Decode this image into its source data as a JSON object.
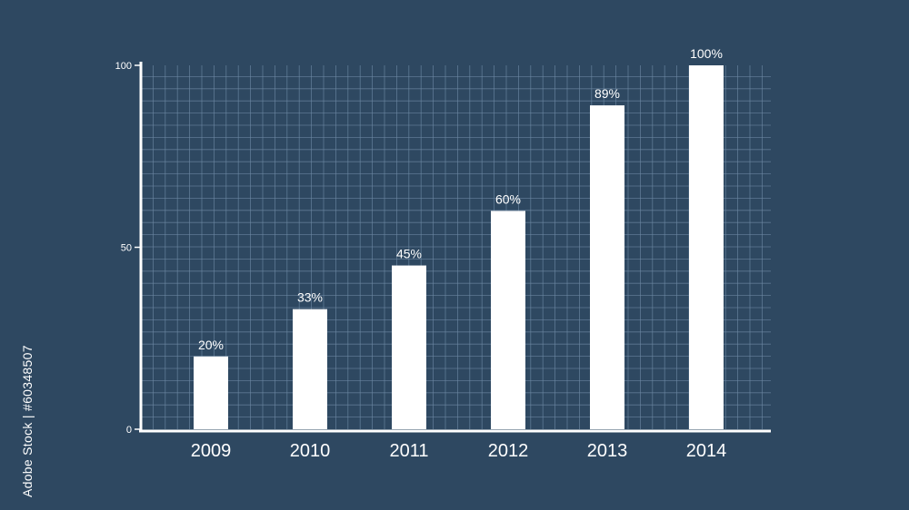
{
  "chart_data": {
    "type": "bar",
    "categories": [
      "2009",
      "2010",
      "2011",
      "2012",
      "2013",
      "2014"
    ],
    "values": [
      20,
      33,
      45,
      60,
      89,
      100
    ],
    "data_labels": [
      "20%",
      "33%",
      "45%",
      "60%",
      "89%",
      "100%"
    ],
    "ylim": [
      0,
      100
    ],
    "yticks": [
      "0",
      "50",
      "100"
    ],
    "grid": true,
    "title": "",
    "xlabel": "",
    "ylabel": "",
    "colors": {
      "background": "#2e4861",
      "bars": "#ffffff",
      "axis": "#ffffff",
      "grid": "#6f8aa5"
    }
  },
  "watermark": {
    "side_text": "Adobe Stock | #60348507",
    "pattern_text": "Adobe Stock"
  }
}
